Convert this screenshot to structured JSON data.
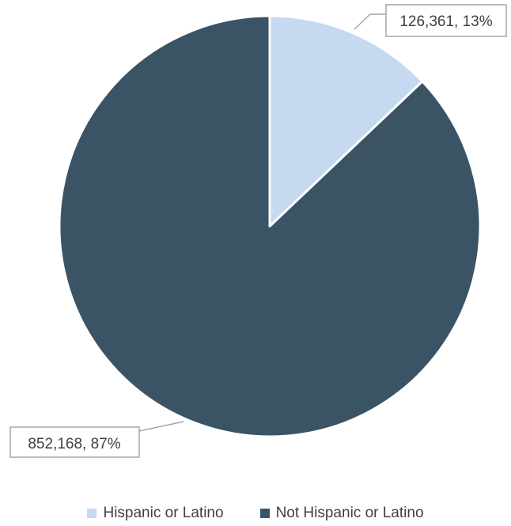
{
  "chart_data": {
    "type": "pie",
    "slices": [
      {
        "label": "Hispanic or Latino",
        "value": 126361,
        "percent": 13,
        "color": "#c5d9f1",
        "data_label": "126,361, 13%"
      },
      {
        "label": "Not Hispanic or Latino",
        "value": 852168,
        "percent": 87,
        "color": "#3a5466",
        "data_label": "852,168, 87%"
      }
    ],
    "start_angle": "12 o'clock",
    "direction": "clockwise",
    "legend": {
      "position": "bottom"
    }
  }
}
